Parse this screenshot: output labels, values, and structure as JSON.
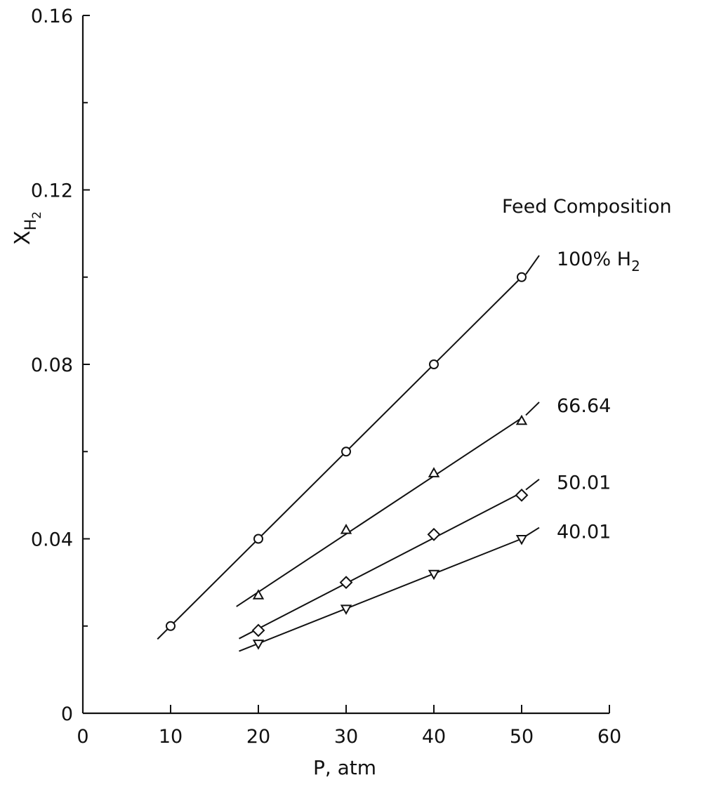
{
  "chart_data": {
    "type": "line",
    "title": "",
    "xlabel": "P, atm",
    "ylabel": "X",
    "ylabel_subscript": "H",
    "ylabel_subsubscript": "2",
    "xlim": [
      0,
      60
    ],
    "ylim": [
      0,
      0.16
    ],
    "x_ticks": [
      "0",
      "10",
      "20",
      "30",
      "40",
      "50",
      "60"
    ],
    "y_ticks": [
      "0",
      "0.04",
      "0.08",
      "0.12",
      "0.16"
    ],
    "grid": false,
    "legend_title": "Feed Composition",
    "series": [
      {
        "name": "100% H",
        "name_subscript": "2",
        "marker": "circle",
        "x": [
          10,
          20,
          30,
          40,
          50
        ],
        "y": [
          0.02,
          0.04,
          0.06,
          0.08,
          0.1
        ]
      },
      {
        "name": "66.64",
        "marker": "triangle-up",
        "x": [
          20,
          30,
          40,
          50
        ],
        "y": [
          0.027,
          0.042,
          0.055,
          0.067
        ]
      },
      {
        "name": "50.01",
        "marker": "diamond",
        "x": [
          20,
          30,
          40,
          50
        ],
        "y": [
          0.019,
          0.03,
          0.041,
          0.05
        ]
      },
      {
        "name": "40.01",
        "marker": "triangle-down",
        "x": [
          20,
          30,
          40,
          50
        ],
        "y": [
          0.016,
          0.024,
          0.032,
          0.04
        ]
      }
    ]
  }
}
